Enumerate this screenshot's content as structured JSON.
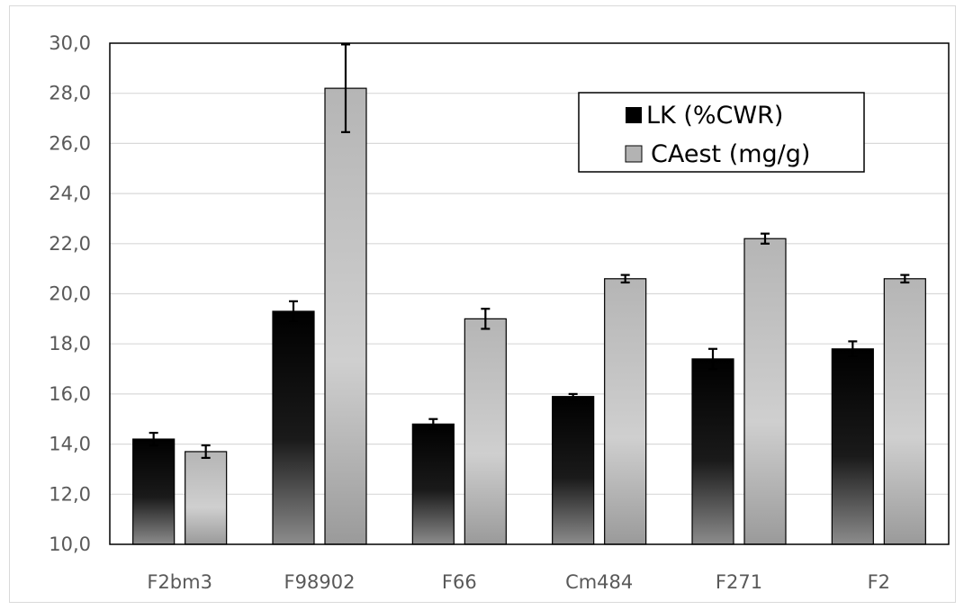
{
  "chart_data": {
    "type": "bar",
    "categories": [
      "F2bm3",
      "F98902",
      "F66",
      "Cm484",
      "F271",
      "F2"
    ],
    "series": [
      {
        "name": "LK (%CWR)",
        "values": [
          14.2,
          19.3,
          14.8,
          15.9,
          17.4,
          17.8
        ],
        "errors": [
          0.25,
          0.4,
          0.2,
          0.1,
          0.4,
          0.3
        ],
        "color": "#000000"
      },
      {
        "name": "CAest (mg/g)",
        "values": [
          13.7,
          28.2,
          19.0,
          20.6,
          22.2,
          20.6
        ],
        "errors": [
          0.25,
          1.75,
          0.4,
          0.15,
          0.2,
          0.15
        ],
        "color": "#b3b3b3"
      }
    ],
    "ylim": [
      10,
      30
    ],
    "yticks": [
      "10,0",
      "12,0",
      "14,0",
      "16,0",
      "18,0",
      "20,0",
      "22,0",
      "24,0",
      "26,0",
      "28,0",
      "30,0"
    ],
    "grid": true,
    "legend_position": "top-right",
    "title": "",
    "xlabel": "",
    "ylabel": ""
  }
}
